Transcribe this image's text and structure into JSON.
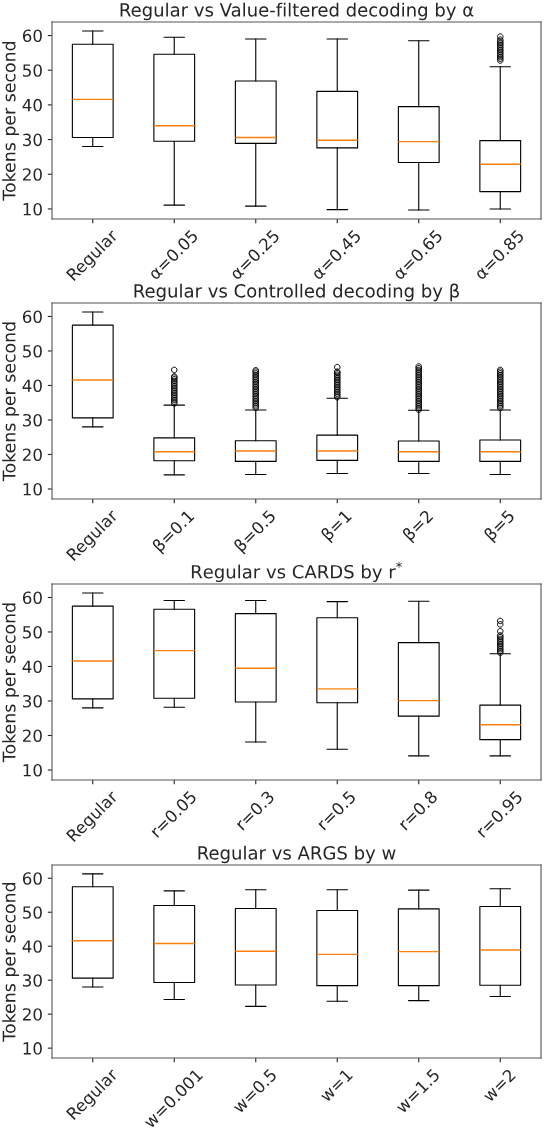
{
  "chart_data": [
    {
      "type": "box",
      "title": "Regular vs Value-filtered decoding by α",
      "ylabel": "Tokens per second",
      "categories": [
        "Regular",
        "α=0.05",
        "α=0.25",
        "α=0.45",
        "α=0.65",
        "α=0.85"
      ],
      "ylim": [
        7.1,
        63.9
      ],
      "yticks": [
        10,
        20,
        30,
        40,
        50,
        60
      ],
      "grid": false,
      "boxes": [
        {
          "low": 28,
          "q1": 30.6,
          "median": 41.6,
          "q3": 57.5,
          "high": 61.3
        },
        {
          "low": 11.1,
          "q1": 29.5,
          "median": 34,
          "q3": 54.6,
          "high": 59.5
        },
        {
          "low": 10.8,
          "q1": 28.9,
          "median": 30.6,
          "q3": 46.9,
          "high": 59
        },
        {
          "low": 9.8,
          "q1": 27.6,
          "median": 29.8,
          "q3": 43.9,
          "high": 59
        },
        {
          "low": 9.7,
          "q1": 23.4,
          "median": 29.4,
          "q3": 39.5,
          "high": 58.5
        },
        {
          "low": 10,
          "q1": 15,
          "median": 22.9,
          "q3": 29.7,
          "high": 51,
          "outliers": [
            52.8,
            53.3,
            53.8,
            54.3,
            54.8,
            55.3,
            55.8,
            56.3,
            56.8,
            57.3,
            57.8,
            58.3,
            58.8,
            59.7
          ]
        }
      ]
    },
    {
      "type": "box",
      "title": "Regular vs Controlled decoding by β",
      "ylabel": "Tokens per second",
      "categories": [
        "Regular",
        "β=0.1",
        "β=0.5",
        "β=1",
        "β=2",
        "β=5"
      ],
      "ylim": [
        7.1,
        63.9
      ],
      "yticks": [
        10,
        20,
        30,
        40,
        50,
        60
      ],
      "grid": false,
      "boxes": [
        {
          "low": 28,
          "q1": 30.6,
          "median": 41.6,
          "q3": 57.5,
          "high": 61.3
        },
        {
          "low": 14.1,
          "q1": 18.2,
          "median": 20.8,
          "q3": 24.8,
          "high": 34.3,
          "outliers": [
            34.8,
            35.3,
            35.8,
            36.3,
            36.8,
            37.3,
            37.8,
            38.3,
            38.8,
            39.3,
            39.8,
            40.3,
            40.8,
            41.3,
            41.8,
            42.3,
            42.6,
            44.5
          ]
        },
        {
          "low": 14.2,
          "q1": 18,
          "median": 21,
          "q3": 24,
          "high": 32.9,
          "outliers": [
            33.5,
            34,
            34.5,
            35,
            35.5,
            36,
            36.5,
            37,
            37.5,
            38,
            38.5,
            39,
            39.5,
            40,
            40.5,
            41,
            41.5,
            42,
            42.5,
            43,
            43.5,
            44,
            44.4
          ]
        },
        {
          "low": 14.5,
          "q1": 18.3,
          "median": 21,
          "q3": 25.6,
          "high": 36.3,
          "outliers": [
            36.6,
            37.1,
            37.6,
            38.1,
            38.6,
            39.1,
            39.6,
            40.1,
            40.6,
            41.1,
            41.6,
            42.1,
            42.6,
            43.1,
            43.6,
            44,
            45.3
          ]
        },
        {
          "low": 14.5,
          "q1": 18,
          "median": 20.8,
          "q3": 23.9,
          "high": 32.8,
          "outliers": [
            33,
            33.5,
            34,
            34.5,
            35,
            35.5,
            36,
            36.5,
            37,
            37.5,
            38,
            38.5,
            39,
            39.5,
            40,
            40.5,
            41,
            41.5,
            42,
            42.5,
            43,
            43.5,
            44,
            44.5,
            45,
            45.5
          ]
        },
        {
          "low": 14.2,
          "q1": 18,
          "median": 20.8,
          "q3": 24.2,
          "high": 32.9,
          "outliers": [
            33.5,
            34,
            34.5,
            35,
            35.5,
            36,
            36.5,
            37,
            37.5,
            38,
            38.5,
            39,
            39.5,
            40,
            40.5,
            41,
            41.5,
            42,
            42.5,
            43,
            43.5,
            44,
            44.5
          ]
        }
      ]
    },
    {
      "type": "box",
      "title": "Regular vs CARDS by r$^{*}$",
      "ylabel": "Tokens per second",
      "categories": [
        "Regular",
        "r=0.05",
        "r=0.3",
        "r=0.5",
        "r=0.8",
        "r=0.95"
      ],
      "ylim": [
        7.1,
        63.9
      ],
      "yticks": [
        10,
        20,
        30,
        40,
        50,
        60
      ],
      "grid": false,
      "boxes": [
        {
          "low": 28,
          "q1": 30.6,
          "median": 41.6,
          "q3": 57.5,
          "high": 61.3
        },
        {
          "low": 28.2,
          "q1": 30.8,
          "median": 44.6,
          "q3": 56.6,
          "high": 59.1
        },
        {
          "low": 18.1,
          "q1": 29.7,
          "median": 39.5,
          "q3": 55.3,
          "high": 59.1
        },
        {
          "low": 16,
          "q1": 29.5,
          "median": 33.5,
          "q3": 54.1,
          "high": 58.8
        },
        {
          "low": 14.1,
          "q1": 25.6,
          "median": 30.1,
          "q3": 46.9,
          "high": 58.9
        },
        {
          "low": 14.1,
          "q1": 18.8,
          "median": 23.1,
          "q3": 28.8,
          "high": 43.7,
          "outliers": [
            44,
            44.5,
            45,
            45.5,
            46,
            46.5,
            47,
            47.5,
            48,
            48.5,
            49,
            50.2,
            52.2,
            53.2
          ]
        }
      ]
    },
    {
      "type": "box",
      "title": "Regular vs ARGS by w",
      "ylabel": "Tokens per second",
      "categories": [
        "Regular",
        "w=0.001",
        "w=0.5",
        "w=1",
        "w=1.5",
        "w=2"
      ],
      "ylim": [
        7.1,
        63.9
      ],
      "yticks": [
        10,
        20,
        30,
        40,
        50,
        60
      ],
      "grid": false,
      "boxes": [
        {
          "low": 28,
          "q1": 30.6,
          "median": 41.6,
          "q3": 57.5,
          "high": 61.3
        },
        {
          "low": 24.3,
          "q1": 29.3,
          "median": 40.8,
          "q3": 52,
          "high": 56.3
        },
        {
          "low": 22.3,
          "q1": 28.6,
          "median": 38.5,
          "q3": 51.1,
          "high": 56.6
        },
        {
          "low": 23.8,
          "q1": 28.4,
          "median": 37.6,
          "q3": 50.5,
          "high": 56.6
        },
        {
          "low": 24,
          "q1": 28.4,
          "median": 38.4,
          "q3": 51,
          "high": 56.5
        },
        {
          "low": 25.2,
          "q1": 28.5,
          "median": 38.9,
          "q3": 51.7,
          "high": 56.9
        }
      ]
    }
  ]
}
